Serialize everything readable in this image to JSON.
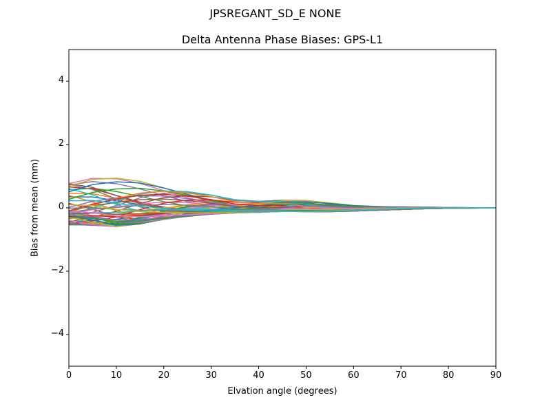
{
  "figure": {
    "suptitle": "JPSREGANT_SD_E  NONE"
  },
  "chart_data": {
    "type": "line",
    "title": "Delta Antenna Phase Biases: GPS-L1",
    "xlabel": "Elvation angle (degrees)",
    "ylabel": "Bias from mean (mm)",
    "xlim": [
      0,
      90
    ],
    "ylim": [
      -5,
      5
    ],
    "xticks": [
      0,
      10,
      20,
      30,
      40,
      50,
      60,
      70,
      80,
      90
    ],
    "yticks": [
      -4,
      -2,
      0,
      2,
      4
    ],
    "ytick_labels": [
      "−4",
      "−2",
      "0",
      "2",
      "4"
    ],
    "grid": false,
    "legend": null,
    "x": [
      0,
      5,
      10,
      15,
      20,
      25,
      30,
      35,
      40,
      45,
      50,
      55,
      60,
      65,
      70,
      75,
      80,
      85,
      90
    ],
    "colors": [
      "#1f77b4",
      "#ff7f0e",
      "#2ca02c",
      "#d62728",
      "#9467bd",
      "#8c564b",
      "#e377c2",
      "#7f7f7f",
      "#bcbd22",
      "#17becf"
    ],
    "series_count": 60,
    "series_note": "Many azimuth curves; bias spread ~[-0.9,1.3] mm at low elevation converging to 0 at 90 deg",
    "envelope": {
      "upper": [
        1.25,
        1.32,
        1.28,
        1.15,
        0.95,
        0.75,
        0.55,
        0.35,
        0.3,
        0.38,
        0.33,
        0.22,
        0.12,
        0.08,
        0.06,
        0.04,
        0.02,
        0.01,
        0.0
      ],
      "lower": [
        -0.85,
        -0.88,
        -0.92,
        -0.8,
        -0.6,
        -0.45,
        -0.33,
        -0.25,
        -0.22,
        -0.2,
        -0.2,
        -0.18,
        -0.14,
        -0.1,
        -0.07,
        -0.04,
        -0.02,
        -0.01,
        0.0
      ]
    }
  }
}
